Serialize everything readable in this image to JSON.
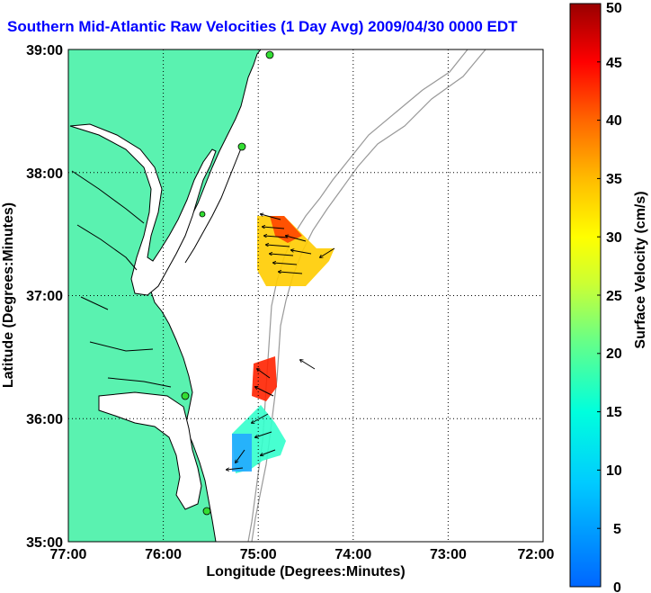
{
  "title": "Southern Mid-Atlantic Raw Velocities (1 Day Avg) 2009/04/30 0000 EDT",
  "map": {
    "xlabel": "Longitude (Degrees:Minutes)",
    "ylabel": "Latitude (Degrees:Minutes)",
    "xticks": [
      "77:00",
      "76:00",
      "75:00",
      "74:00",
      "73:00",
      "72:00"
    ],
    "yticks": [
      "39:00",
      "38:00",
      "37:00",
      "36:00",
      "35:00"
    ],
    "lon_range": [
      -77,
      -72
    ],
    "lat_range": [
      35,
      39
    ],
    "grid": true,
    "land_color": "#5af2b0",
    "coast_color": "#000000",
    "bathymetry_color": "#999999",
    "station_color": "#33dd33"
  },
  "colorbar": {
    "label": "Surface Velocity (cm/s)",
    "ticks": [
      "0",
      "5",
      "10",
      "15",
      "20",
      "25",
      "30",
      "35",
      "40",
      "45",
      "50"
    ],
    "range": [
      0,
      50
    ],
    "colormap": "jet"
  }
}
